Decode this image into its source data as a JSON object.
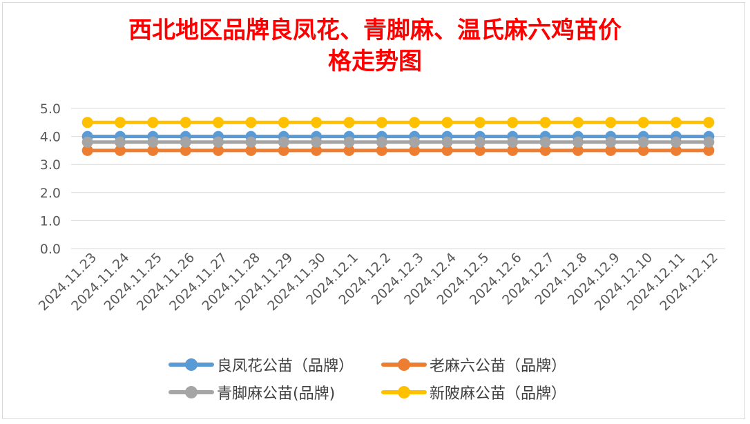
{
  "title_lines": [
    "西北地区品牌良凤花、青脚麻、温氏麻六鸡苗价",
    "格走势图"
  ],
  "chart_data": {
    "type": "line",
    "title": "西北地区品牌良凤花、青脚麻、温氏麻六鸡苗价格走势图",
    "xlabel": "",
    "ylabel": "",
    "ylim": [
      0,
      5
    ],
    "yticks": [
      "0.0",
      "1.0",
      "2.0",
      "3.0",
      "4.0",
      "5.0"
    ],
    "grid": true,
    "legend_position": "bottom",
    "categories": [
      "2024.11.23",
      "2024.11.24",
      "2024.11.25",
      "2024.11.26",
      "2024.11.27",
      "2024.11.28",
      "2024.11.29",
      "2024.11.30",
      "2024.12.1",
      "2024.12.2",
      "2024.12.3",
      "2024.12.4",
      "2024.12.5",
      "2024.12.6",
      "2024.12.7",
      "2024.12.8",
      "2024.12.9",
      "2024.12.10",
      "2024.12.11",
      "2024.12.12"
    ],
    "series": [
      {
        "name": "良凤花公苗（品牌）",
        "color": "#5b9bd5",
        "values": [
          4.0,
          4.0,
          4.0,
          4.0,
          4.0,
          4.0,
          4.0,
          4.0,
          4.0,
          4.0,
          4.0,
          4.0,
          4.0,
          4.0,
          4.0,
          4.0,
          4.0,
          4.0,
          4.0,
          4.0
        ]
      },
      {
        "name": "老麻六公苗（品牌）",
        "color": "#ed7d31",
        "values": [
          3.5,
          3.5,
          3.5,
          3.5,
          3.5,
          3.5,
          3.5,
          3.5,
          3.5,
          3.5,
          3.5,
          3.5,
          3.5,
          3.5,
          3.5,
          3.5,
          3.5,
          3.5,
          3.5,
          3.5
        ]
      },
      {
        "name": "青脚麻公苗(品牌)",
        "color": "#a5a5a5",
        "values": [
          3.8,
          3.8,
          3.8,
          3.8,
          3.8,
          3.8,
          3.8,
          3.8,
          3.8,
          3.8,
          3.8,
          3.8,
          3.8,
          3.8,
          3.8,
          3.8,
          3.8,
          3.8,
          3.8,
          3.8
        ]
      },
      {
        "name": "新陂麻公苗（品牌）",
        "color": "#ffc000",
        "values": [
          4.5,
          4.5,
          4.5,
          4.5,
          4.5,
          4.5,
          4.5,
          4.5,
          4.5,
          4.5,
          4.5,
          4.5,
          4.5,
          4.5,
          4.5,
          4.5,
          4.5,
          4.5,
          4.5,
          4.5
        ]
      }
    ]
  }
}
